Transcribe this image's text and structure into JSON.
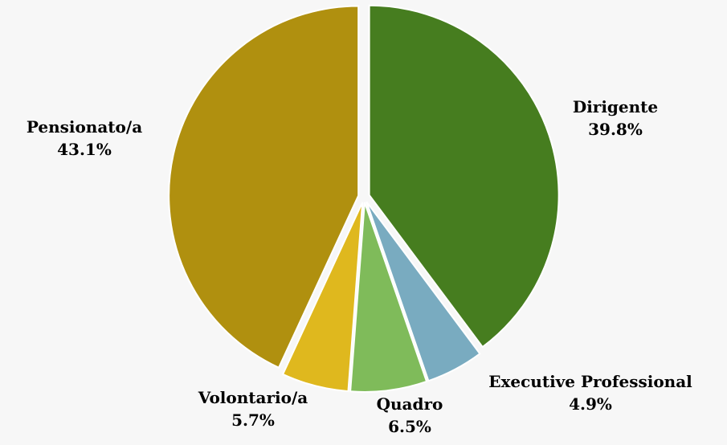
{
  "chart_data": {
    "type": "pie",
    "categories": [
      "Dirigente",
      "Executive Professional",
      "Quadro",
      "Volontario/a",
      "Pensionato/a"
    ],
    "values": [
      39.8,
      4.9,
      6.5,
      5.7,
      43.1
    ],
    "value_labels": [
      "39.8%",
      "4.9%",
      "6.5%",
      "5.7%",
      "43.1%"
    ],
    "colors": [
      "#467d1f",
      "#79abc0",
      "#7fbb5a",
      "#dfb81e",
      "#b0900f"
    ]
  }
}
